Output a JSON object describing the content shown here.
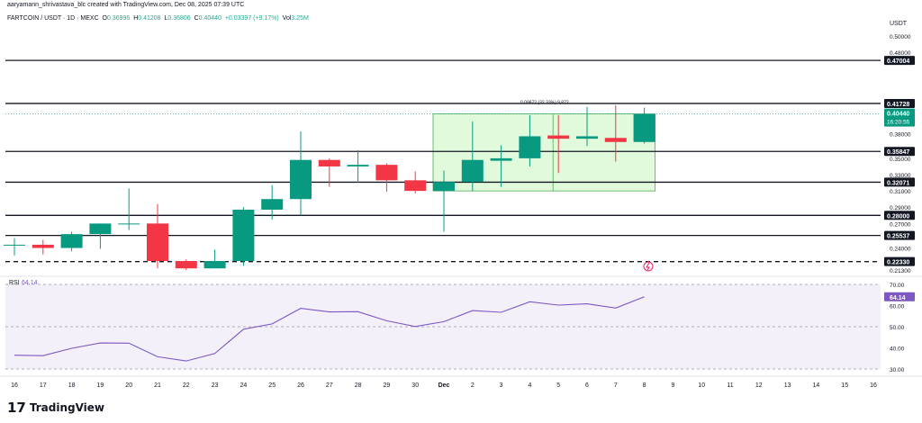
{
  "header": {
    "caption": "aaryamann_shrivastava_blc created with TradingView.com, Dec 08, 2025 07:39 UTC"
  },
  "ohlc": {
    "symbol": "FARTCOIN / USDT · 1D · MEXC",
    "o_label": "O",
    "o": "0.36996",
    "h_label": "H",
    "h": "0.41208",
    "l_label": "L",
    "l": "0.36806",
    "c_label": "C",
    "c": "0.40440",
    "change": "+0.03397 (+9.17%)",
    "vol_label": "Vol",
    "vol": "3.25M"
  },
  "footer": {
    "logo": "17",
    "brand": "TradingView"
  },
  "colors": {
    "up": "#089981",
    "down": "#f23645",
    "rsi": "#7e57c2",
    "box": "#c8f5c0"
  },
  "chart_data": {
    "type": "candlestick",
    "quote_unit": "USDT",
    "x_ticks": [
      "16",
      "17",
      "18",
      "19",
      "20",
      "21",
      "22",
      "23",
      "24",
      "25",
      "26",
      "27",
      "28",
      "29",
      "30",
      "Dec",
      "2",
      "3",
      "4",
      "5",
      "6",
      "7",
      "8",
      "9",
      "10",
      "11",
      "12",
      "13",
      "14",
      "15",
      "16"
    ],
    "price_ticks": [
      "0.50000",
      "0.48000",
      "0.38000",
      "0.35000",
      "0.33000",
      "0.31000",
      "0.29000",
      "0.27000",
      "0.24000",
      "0.21300"
    ],
    "candles": [
      {
        "x": "16",
        "o": 0.244,
        "h": 0.252,
        "l": 0.231,
        "c": 0.244
      },
      {
        "x": "17",
        "o": 0.244,
        "h": 0.25,
        "l": 0.232,
        "c": 0.24
      },
      {
        "x": "18",
        "o": 0.24,
        "h": 0.26,
        "l": 0.236,
        "c": 0.257
      },
      {
        "x": "19",
        "o": 0.257,
        "h": 0.27,
        "l": 0.239,
        "c": 0.27
      },
      {
        "x": "20",
        "o": 0.2695,
        "h": 0.313,
        "l": 0.262,
        "c": 0.27
      },
      {
        "x": "21",
        "o": 0.27,
        "h": 0.294,
        "l": 0.215,
        "c": 0.224
      },
      {
        "x": "22",
        "o": 0.224,
        "h": 0.226,
        "l": 0.213,
        "c": 0.215
      },
      {
        "x": "23",
        "o": 0.215,
        "h": 0.238,
        "l": 0.215,
        "c": 0.224
      },
      {
        "x": "24",
        "o": 0.224,
        "h": 0.29,
        "l": 0.218,
        "c": 0.287
      },
      {
        "x": "25",
        "o": 0.287,
        "h": 0.317,
        "l": 0.275,
        "c": 0.3
      },
      {
        "x": "26",
        "o": 0.3,
        "h": 0.383,
        "l": 0.28,
        "c": 0.348
      },
      {
        "x": "27",
        "o": 0.348,
        "h": 0.35,
        "l": 0.315,
        "c": 0.34
      },
      {
        "x": "28",
        "o": 0.34,
        "h": 0.36,
        "l": 0.32,
        "c": 0.342
      },
      {
        "x": "29",
        "o": 0.342,
        "h": 0.344,
        "l": 0.309,
        "c": 0.323
      },
      {
        "x": "30",
        "o": 0.323,
        "h": 0.334,
        "l": 0.307,
        "c": 0.31
      },
      {
        "x": "Dec",
        "o": 0.31,
        "h": 0.335,
        "l": 0.26,
        "c": 0.321
      },
      {
        "x": "2",
        "o": 0.321,
        "h": 0.395,
        "l": 0.31,
        "c": 0.348
      },
      {
        "x": "3",
        "o": 0.347,
        "h": 0.366,
        "l": 0.315,
        "c": 0.35
      },
      {
        "x": "4",
        "o": 0.35,
        "h": 0.403,
        "l": 0.34,
        "c": 0.377
      },
      {
        "x": "5",
        "o": 0.378,
        "h": 0.403,
        "l": 0.332,
        "c": 0.374
      },
      {
        "x": "6",
        "o": 0.374,
        "h": 0.413,
        "l": 0.365,
        "c": 0.377
      },
      {
        "x": "7",
        "o": 0.375,
        "h": 0.415,
        "l": 0.346,
        "c": 0.37
      },
      {
        "x": "8",
        "o": 0.37,
        "h": 0.4121,
        "l": 0.3681,
        "c": 0.4044
      }
    ],
    "levels": [
      {
        "value": 0.47004,
        "label": "0.47004",
        "style": "solid"
      },
      {
        "value": 0.41728,
        "label": "0.41728",
        "style": "solid"
      },
      {
        "value": 0.35847,
        "label": "0.35847",
        "style": "solid"
      },
      {
        "value": 0.32071,
        "label": "0.32071",
        "style": "solid"
      },
      {
        "value": 0.28,
        "label": "0.28000",
        "style": "solid"
      },
      {
        "value": 0.25537,
        "label": "0.25537",
        "style": "solid"
      },
      {
        "value": 0.2233,
        "label": "0.22330",
        "style": "dashed"
      }
    ],
    "current_price": {
      "value": 0.4044,
      "label": "0.40440",
      "countdown": "16:20:55"
    },
    "measure_box": {
      "x_start": "Dec",
      "x_end": "8",
      "y_low": 0.31,
      "y_high": 0.4044,
      "label": "0.09872 (32.33%) 9,872"
    },
    "rsi": {
      "label": "RSI",
      "value_label": "64.14",
      "current": 64.14,
      "ticks": [
        "70.00",
        "60.00",
        "50.00",
        "40.00",
        "30.00"
      ],
      "band": [
        30,
        70
      ],
      "values": [
        36.5,
        36.3,
        39.8,
        42.3,
        42.2,
        35.8,
        33.8,
        37.3,
        48.8,
        51.3,
        58.7,
        57.0,
        57.1,
        52.8,
        50.1,
        52.4,
        57.6,
        56.8,
        61.8,
        60.2,
        60.8,
        58.8,
        64.14
      ]
    }
  }
}
